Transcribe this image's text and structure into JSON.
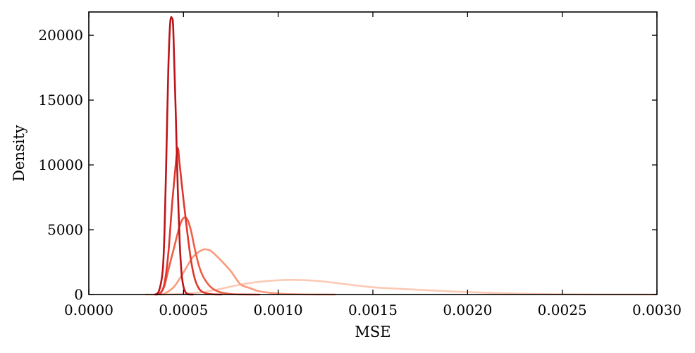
{
  "chart_data": {
    "type": "line",
    "title": "",
    "xlabel": "MSE",
    "ylabel": "Density",
    "xlim": [
      0,
      0.003
    ],
    "ylim": [
      0,
      21800
    ],
    "xticks": [
      0.0,
      0.0005,
      0.001,
      0.0015,
      0.002,
      0.0025,
      0.003
    ],
    "xtick_labels": [
      "0.0000",
      "0.0005",
      "0.0010",
      "0.0015",
      "0.0020",
      "0.0025",
      "0.0030"
    ],
    "yticks": [
      0,
      5000,
      10000,
      15000,
      20000
    ],
    "ytick_labels": [
      "0",
      "5000",
      "10000",
      "15000",
      "20000"
    ],
    "grid": false,
    "legend": "none",
    "series": [
      {
        "color": "#fcc9b4",
        "points": [
          [
            0.0003,
            0
          ],
          [
            0.0004,
            5
          ],
          [
            0.0005,
            60
          ],
          [
            0.0006,
            180
          ],
          [
            0.0007,
            450
          ],
          [
            0.0008,
            760
          ],
          [
            0.0009,
            980
          ],
          [
            0.001,
            1100
          ],
          [
            0.0011,
            1120
          ],
          [
            0.0012,
            1060
          ],
          [
            0.0013,
            900
          ],
          [
            0.0014,
            720
          ],
          [
            0.0015,
            560
          ],
          [
            0.0016,
            470
          ],
          [
            0.0017,
            400
          ],
          [
            0.0018,
            320
          ],
          [
            0.0019,
            250
          ],
          [
            0.002,
            190
          ],
          [
            0.0021,
            140
          ],
          [
            0.0022,
            95
          ],
          [
            0.0023,
            60
          ],
          [
            0.0024,
            35
          ],
          [
            0.0025,
            20
          ],
          [
            0.0026,
            10
          ],
          [
            0.0028,
            3
          ],
          [
            0.003,
            0
          ]
        ]
      },
      {
        "color": "#fb9a7c",
        "points": [
          [
            0.00038,
            0
          ],
          [
            0.0004,
            60
          ],
          [
            0.00045,
            600
          ],
          [
            0.0005,
            1700
          ],
          [
            0.00055,
            2900
          ],
          [
            0.0006,
            3450
          ],
          [
            0.00063,
            3450
          ],
          [
            0.00065,
            3300
          ],
          [
            0.0007,
            2600
          ],
          [
            0.00075,
            1800
          ],
          [
            0.0008,
            800
          ],
          [
            0.00085,
            500
          ],
          [
            0.0009,
            250
          ],
          [
            0.001,
            80
          ],
          [
            0.0011,
            20
          ],
          [
            0.0012,
            5
          ],
          [
            0.0013,
            0
          ]
        ]
      },
      {
        "color": "#f15e45",
        "points": [
          [
            0.00036,
            0
          ],
          [
            0.00038,
            120
          ],
          [
            0.0004,
            700
          ],
          [
            0.00042,
            1900
          ],
          [
            0.00045,
            3600
          ],
          [
            0.00048,
            5300
          ],
          [
            0.0005,
            5900
          ],
          [
            0.00052,
            5800
          ],
          [
            0.00054,
            4900
          ],
          [
            0.00056,
            3500
          ],
          [
            0.00058,
            2300
          ],
          [
            0.0006,
            1500
          ],
          [
            0.00063,
            800
          ],
          [
            0.00066,
            400
          ],
          [
            0.0007,
            150
          ],
          [
            0.00075,
            40
          ],
          [
            0.0008,
            10
          ],
          [
            0.0009,
            0
          ]
        ]
      },
      {
        "color": "#e0372c",
        "points": [
          [
            0.00036,
            0
          ],
          [
            0.00038,
            150
          ],
          [
            0.0004,
            900
          ],
          [
            0.00042,
            3200
          ],
          [
            0.00044,
            7000
          ],
          [
            0.00046,
            10200
          ],
          [
            0.00047,
            11300
          ],
          [
            0.00048,
            10000
          ],
          [
            0.0005,
            7300
          ],
          [
            0.00052,
            4800
          ],
          [
            0.00054,
            2600
          ],
          [
            0.00056,
            1200
          ],
          [
            0.00058,
            500
          ],
          [
            0.0006,
            200
          ],
          [
            0.00063,
            60
          ],
          [
            0.00066,
            15
          ],
          [
            0.0007,
            0
          ]
        ]
      },
      {
        "color": "#bb151a",
        "points": [
          [
            0.00035,
            0
          ],
          [
            0.00037,
            250
          ],
          [
            0.00039,
            1800
          ],
          [
            0.0004,
            5000
          ],
          [
            0.00041,
            11000
          ],
          [
            0.00042,
            17500
          ],
          [
            0.00043,
            21000
          ],
          [
            0.00044,
            21300
          ],
          [
            0.000445,
            20800
          ],
          [
            0.00045,
            18500
          ],
          [
            0.00046,
            13500
          ],
          [
            0.00047,
            8000
          ],
          [
            0.00048,
            4000
          ],
          [
            0.00049,
            1600
          ],
          [
            0.0005,
            600
          ],
          [
            0.00051,
            200
          ],
          [
            0.00052,
            50
          ],
          [
            0.00053,
            10
          ],
          [
            0.00055,
            0
          ]
        ]
      }
    ]
  }
}
